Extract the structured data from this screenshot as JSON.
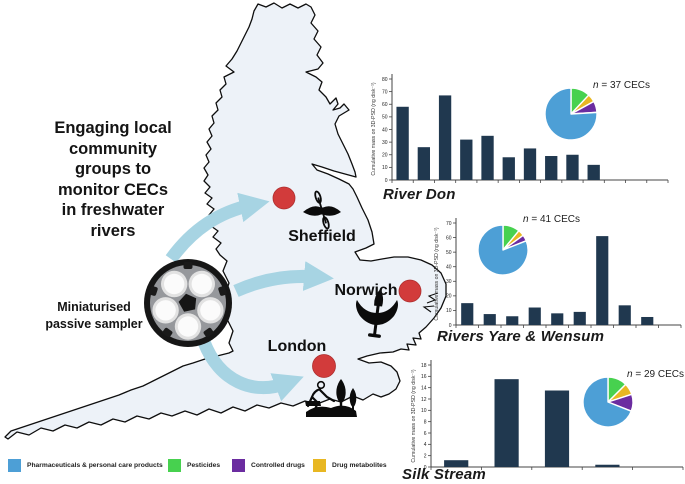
{
  "headline": {
    "lines": [
      "Engaging local",
      "community",
      "groups to",
      "monitor CECs",
      "in freshwater",
      "rivers"
    ]
  },
  "sampler": {
    "line1": "Miniaturised",
    "line2": "passive sampler"
  },
  "cities": {
    "sheffield": "Sheffield",
    "norwich": "Norwich",
    "london": "London"
  },
  "legend": {
    "items": [
      {
        "label": "Pharmaceuticals & personal care products",
        "color": "#4D9FD6"
      },
      {
        "label": "Pesticides",
        "color": "#47D14F"
      },
      {
        "label": "Controlled drugs",
        "color": "#6B2CA0"
      },
      {
        "label": "Drug metabolites",
        "color": "#E8B722"
      }
    ]
  },
  "colors": {
    "bar": "#20384F",
    "arrow": "#A7D4E3",
    "map_fill": "#EDF2F8",
    "dot_red": "#D23B3B"
  },
  "chart_data": [
    {
      "type": "bar",
      "title": "River Don",
      "n_var": "n",
      "n_rest": "= 37 CECs",
      "n_cecs": 37,
      "ylabel": "Cumulative mass on 3D-PSD (ng disk⁻¹)",
      "ymax": 80,
      "ystep": 10,
      "values": [
        58,
        26,
        67,
        32,
        35,
        18,
        25,
        19,
        20,
        12
      ],
      "pie_percent": {
        "pharmaceuticals": 76,
        "pesticides": 12,
        "drug_metabolites": 5,
        "controlled_drugs": 7
      }
    },
    {
      "type": "bar",
      "title": "Rivers Yare & Wensum",
      "n_var": "n",
      "n_rest": "= 41 CECs",
      "n_cecs": 41,
      "ylabel": "Cumulative mass on 3D-PSD (ng disk⁻¹)",
      "ymax": 70,
      "ystep": 10,
      "values": [
        15,
        7.5,
        6,
        12,
        8,
        9,
        61,
        13.5,
        5.5
      ],
      "pie_percent": {
        "pharmaceuticals": 81,
        "pesticides": 11,
        "drug_metabolites": 4,
        "controlled_drugs": 4
      }
    },
    {
      "type": "bar",
      "title": "Silk Stream",
      "n_var": "n",
      "n_rest": "= 29 CECs",
      "n_cecs": 29,
      "ylabel": "Cumulative mass on 3D-PSD (ng disk⁻¹)",
      "ymax": 18,
      "ystep": 2,
      "values": [
        1.2,
        15.5,
        13.5,
        0.4
      ],
      "pie_percent": {
        "pharmaceuticals": 69,
        "pesticides": 12.5,
        "drug_metabolites": 7.5,
        "controlled_drugs": 11
      }
    }
  ]
}
